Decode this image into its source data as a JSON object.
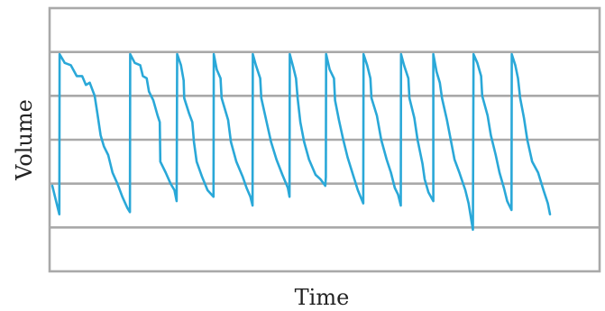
{
  "chart_data": {
    "type": "line",
    "title": "",
    "xlabel": "Time",
    "ylabel": "Volume",
    "grid": true,
    "legend": "none",
    "xlim": [
      0,
      100
    ],
    "ylim": [
      0,
      6
    ],
    "axis_ticks_shown": false,
    "series": [
      {
        "color": "#2aa8d8",
        "points": [
          [
            0.0,
            1.95
          ],
          [
            1.3,
            1.3
          ],
          [
            1.35,
            4.95
          ],
          [
            2.3,
            4.75
          ],
          [
            3.4,
            4.7
          ],
          [
            4.5,
            4.45
          ],
          [
            5.5,
            4.45
          ],
          [
            6.2,
            4.25
          ],
          [
            6.9,
            4.3
          ],
          [
            7.8,
            4.0
          ],
          [
            8.3,
            3.6
          ],
          [
            8.9,
            3.1
          ],
          [
            9.5,
            2.85
          ],
          [
            10.3,
            2.65
          ],
          [
            11.1,
            2.25
          ],
          [
            12.0,
            2.0
          ],
          [
            12.9,
            1.7
          ],
          [
            13.8,
            1.45
          ],
          [
            14.3,
            1.35
          ],
          [
            14.35,
            4.95
          ],
          [
            15.2,
            4.75
          ],
          [
            16.2,
            4.7
          ],
          [
            16.7,
            4.45
          ],
          [
            17.4,
            4.4
          ],
          [
            17.8,
            4.1
          ],
          [
            18.6,
            3.9
          ],
          [
            19.4,
            3.55
          ],
          [
            19.8,
            3.4
          ],
          [
            19.9,
            2.5
          ],
          [
            20.9,
            2.25
          ],
          [
            21.8,
            2.0
          ],
          [
            22.5,
            1.85
          ],
          [
            22.9,
            1.6
          ],
          [
            23.0,
            4.95
          ],
          [
            23.7,
            4.7
          ],
          [
            24.2,
            4.35
          ],
          [
            24.3,
            3.95
          ],
          [
            25.2,
            3.6
          ],
          [
            25.8,
            3.4
          ],
          [
            26.1,
            2.95
          ],
          [
            26.6,
            2.5
          ],
          [
            27.6,
            2.15
          ],
          [
            28.6,
            1.85
          ],
          [
            29.7,
            1.7
          ],
          [
            29.75,
            4.95
          ],
          [
            30.3,
            4.6
          ],
          [
            31.0,
            4.4
          ],
          [
            31.2,
            3.95
          ],
          [
            32.4,
            3.45
          ],
          [
            32.9,
            2.95
          ],
          [
            33.9,
            2.5
          ],
          [
            35.1,
            2.15
          ],
          [
            35.8,
            1.9
          ],
          [
            36.5,
            1.7
          ],
          [
            36.9,
            1.5
          ],
          [
            36.95,
            4.95
          ],
          [
            37.5,
            4.7
          ],
          [
            38.3,
            4.4
          ],
          [
            38.5,
            3.95
          ],
          [
            39.4,
            3.45
          ],
          [
            40.3,
            2.95
          ],
          [
            41.3,
            2.55
          ],
          [
            42.4,
            2.2
          ],
          [
            43.4,
            1.9
          ],
          [
            43.7,
            1.7
          ],
          [
            43.75,
            4.95
          ],
          [
            44.4,
            4.65
          ],
          [
            44.9,
            4.4
          ],
          [
            45.2,
            3.95
          ],
          [
            45.7,
            3.4
          ],
          [
            46.4,
            2.95
          ],
          [
            47.3,
            2.55
          ],
          [
            48.5,
            2.2
          ],
          [
            49.4,
            2.1
          ],
          [
            50.3,
            1.95
          ],
          [
            50.4,
            2.15
          ],
          [
            50.45,
            4.95
          ],
          [
            51.1,
            4.6
          ],
          [
            51.9,
            4.4
          ],
          [
            52.1,
            3.9
          ],
          [
            52.8,
            3.45
          ],
          [
            53.6,
            3.0
          ],
          [
            54.4,
            2.6
          ],
          [
            55.4,
            2.2
          ],
          [
            56.3,
            1.85
          ],
          [
            57.3,
            1.55
          ],
          [
            57.35,
            4.95
          ],
          [
            58.0,
            4.7
          ],
          [
            58.6,
            4.4
          ],
          [
            58.8,
            3.95
          ],
          [
            59.8,
            3.55
          ],
          [
            60.6,
            3.0
          ],
          [
            61.6,
            2.55
          ],
          [
            62.4,
            2.25
          ],
          [
            63.1,
            1.9
          ],
          [
            63.7,
            1.75
          ],
          [
            64.2,
            1.5
          ],
          [
            64.25,
            4.95
          ],
          [
            64.8,
            4.7
          ],
          [
            65.6,
            4.4
          ],
          [
            65.8,
            3.95
          ],
          [
            66.7,
            3.5
          ],
          [
            67.3,
            3.0
          ],
          [
            68.2,
            2.45
          ],
          [
            68.6,
            2.1
          ],
          [
            69.3,
            1.8
          ],
          [
            70.2,
            1.6
          ],
          [
            70.2,
            4.95
          ],
          [
            70.8,
            4.55
          ],
          [
            71.4,
            4.3
          ],
          [
            71.8,
            3.95
          ],
          [
            72.7,
            3.45
          ],
          [
            73.4,
            3.0
          ],
          [
            74.1,
            2.55
          ],
          [
            75.0,
            2.25
          ],
          [
            76.1,
            1.85
          ],
          [
            76.7,
            1.55
          ],
          [
            77.5,
            0.95
          ],
          [
            77.6,
            4.95
          ],
          [
            78.3,
            4.75
          ],
          [
            79.0,
            4.45
          ],
          [
            79.2,
            4.0
          ],
          [
            80.2,
            3.55
          ],
          [
            80.8,
            3.1
          ],
          [
            81.7,
            2.65
          ],
          [
            82.4,
            2.25
          ],
          [
            83.2,
            1.9
          ],
          [
            83.8,
            1.6
          ],
          [
            84.6,
            1.4
          ],
          [
            84.65,
            4.95
          ],
          [
            85.3,
            4.7
          ],
          [
            85.8,
            4.4
          ],
          [
            86.2,
            3.95
          ],
          [
            86.9,
            3.5
          ],
          [
            87.5,
            3.0
          ],
          [
            88.4,
            2.5
          ],
          [
            89.5,
            2.25
          ],
          [
            90.5,
            1.85
          ],
          [
            91.3,
            1.55
          ],
          [
            91.7,
            1.3
          ]
        ]
      }
    ]
  }
}
